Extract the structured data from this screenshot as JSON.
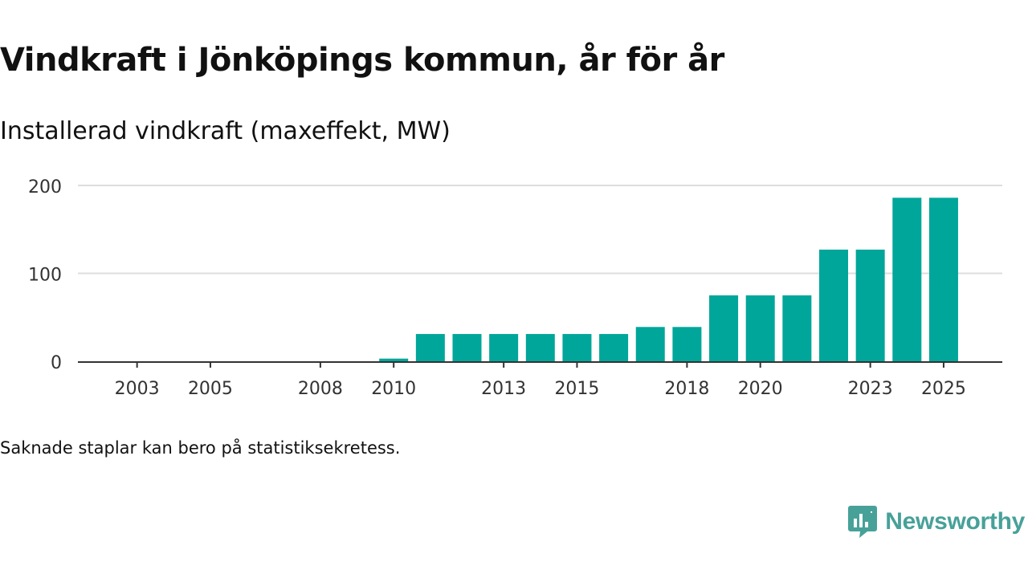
{
  "title": "Vindkraft i Jönköpings kommun, år för år",
  "subtitle": "Installerad vindkraft (maxeffekt, MW)",
  "footnote": "Saknade staplar kan bero på statistiksekretess.",
  "brand": "Newsworthy",
  "colors": {
    "bar": "#00a69a",
    "brand": "#47a199",
    "grid": "#dddddd",
    "axis": "#333333"
  },
  "chart_data": {
    "type": "bar",
    "title": "Vindkraft i Jönköpings kommun, år för år",
    "ylabel": "Installerad vindkraft (maxeffekt, MW)",
    "xlabel": "",
    "ylim": [
      0,
      200
    ],
    "yticks": [
      0,
      100,
      200
    ],
    "xtick_labels": [
      "2003",
      "2005",
      "2008",
      "2010",
      "2013",
      "2015",
      "2018",
      "2020",
      "2023",
      "2025"
    ],
    "categories": [
      "2002",
      "2003",
      "2004",
      "2005",
      "2006",
      "2007",
      "2008",
      "2009",
      "2010",
      "2011",
      "2012",
      "2013",
      "2014",
      "2015",
      "2016",
      "2017",
      "2018",
      "2019",
      "2020",
      "2021",
      "2022",
      "2023",
      "2024",
      "2025"
    ],
    "values": [
      0,
      0,
      0,
      0,
      0,
      0,
      0,
      0,
      3,
      31,
      31,
      31,
      31,
      31,
      31,
      39,
      39,
      75,
      75,
      75,
      127,
      127,
      186,
      186
    ]
  }
}
